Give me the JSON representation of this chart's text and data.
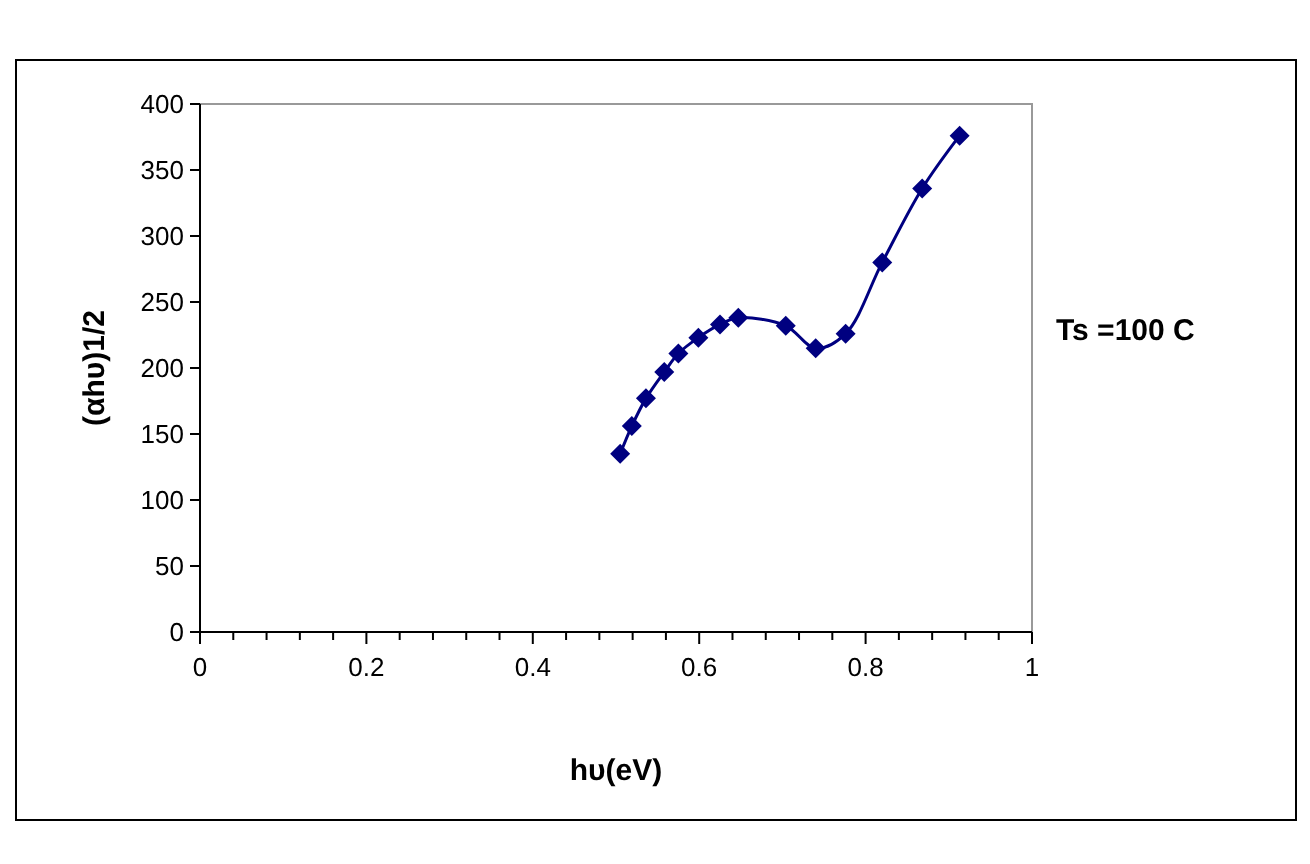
{
  "chart_data": {
    "type": "line",
    "xlabel": "hυ(eV)",
    "ylabel": "(αhυ)1/2",
    "annotations": [
      "Ts =100 C"
    ],
    "xlim": [
      0,
      1
    ],
    "ylim": [
      0,
      400
    ],
    "xticks": [
      0,
      {
        "value": 0.04,
        "label": null
      },
      {
        "value": 0.08,
        "label": null
      },
      {
        "value": 0.12,
        "label": null
      },
      {
        "value": 0.16,
        "label": null
      },
      0.2,
      {
        "value": 0.24,
        "label": null
      },
      {
        "value": 0.28,
        "label": null
      },
      {
        "value": 0.32,
        "label": null
      },
      {
        "value": 0.36,
        "label": null
      },
      0.4,
      {
        "value": 0.44,
        "label": null
      },
      {
        "value": 0.48,
        "label": null
      },
      {
        "value": 0.52,
        "label": null
      },
      {
        "value": 0.56,
        "label": null
      },
      0.6,
      {
        "value": 0.64,
        "label": null
      },
      {
        "value": 0.68,
        "label": null
      },
      {
        "value": 0.72,
        "label": null
      },
      {
        "value": 0.76,
        "label": null
      },
      0.8,
      {
        "value": 0.84,
        "label": null
      },
      {
        "value": 0.88,
        "label": null
      },
      {
        "value": 0.92,
        "label": null
      },
      {
        "value": 0.96,
        "label": null
      },
      1
    ],
    "yticks": [
      0,
      50,
      100,
      150,
      200,
      250,
      300,
      350,
      400
    ],
    "x": [
      0.505,
      0.519,
      0.536,
      0.558,
      0.575,
      0.599,
      0.625,
      0.647,
      0.704,
      0.74,
      0.776,
      0.82,
      0.868,
      0.913
    ],
    "series": [
      {
        "color": "#000080",
        "values": [
          135,
          156,
          177,
          197,
          211,
          223,
          233,
          238,
          232,
          215,
          226,
          280,
          336,
          376
        ]
      }
    ],
    "marker": "diamond",
    "line_style": "solid",
    "grid": false
  }
}
